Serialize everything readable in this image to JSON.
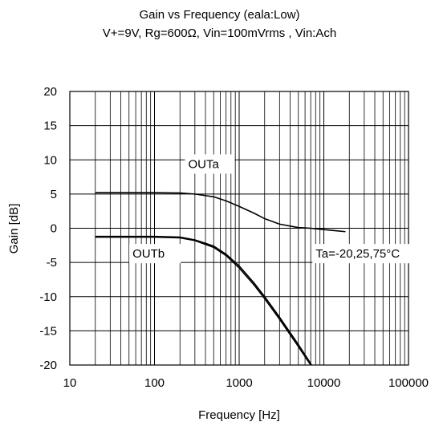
{
  "chart_data": {
    "type": "line",
    "title": "Gain vs Frequency (eala:Low)",
    "subtitle": "V+=9V, Rg=600Ω, Vin=100mVrms , Vin:Ach",
    "xlabel": "Frequency [Hz]",
    "ylabel": "Gain [dB]",
    "x_scale": "log",
    "xlim": [
      10,
      100000
    ],
    "ylim": [
      -20,
      20
    ],
    "x_ticks": [
      10,
      100,
      1000,
      10000,
      100000
    ],
    "x_tick_labels": [
      "10",
      "100",
      "1000",
      "10000",
      "100000"
    ],
    "y_ticks": [
      20,
      15,
      10,
      5,
      0,
      -5,
      -10,
      -15,
      -20
    ],
    "y_tick_labels": [
      "20",
      "15",
      "10",
      "5",
      "0",
      "-5",
      "-10",
      "-15",
      "-20"
    ],
    "grid": true,
    "annotations": [
      {
        "text": "OUTa",
        "x": 250,
        "y": 8.8
      },
      {
        "text": "OUTb",
        "x": 55,
        "y": -4.3
      },
      {
        "text": "Ta=-20,25,75°C",
        "x": 8000,
        "y": -4.3
      }
    ],
    "series": [
      {
        "x": [
          20,
          50,
          100,
          200,
          300,
          500,
          700,
          1000,
          1500,
          2000,
          3000,
          5000,
          7000,
          10000,
          15000,
          18000
        ],
        "y": [
          5.2,
          5.2,
          5.2,
          5.15,
          5.0,
          4.6,
          4.0,
          3.2,
          2.2,
          1.4,
          0.6,
          0.1,
          0.0,
          -0.2,
          -0.4,
          -0.5
        ]
      },
      {
        "x": [
          20,
          50,
          100,
          200,
          300,
          500,
          700,
          1000,
          1500,
          2000,
          3000,
          5000,
          7000,
          7800
        ],
        "y": [
          -1.3,
          -1.3,
          -1.3,
          -1.4,
          -1.8,
          -2.8,
          -4.0,
          -5.8,
          -8.3,
          -10.3,
          -13.3,
          -17.3,
          -20.0,
          -20.5
        ]
      },
      {
        "x": [
          20,
          50,
          100,
          200,
          300,
          500,
          700,
          1000,
          1500,
          2000,
          3000,
          5000,
          7000,
          7500
        ],
        "y": [
          -1.2,
          -1.2,
          -1.2,
          -1.3,
          -1.7,
          -2.6,
          -3.8,
          -5.5,
          -8.0,
          -10.0,
          -13.0,
          -17.0,
          -19.8,
          -20.5
        ]
      }
    ]
  }
}
